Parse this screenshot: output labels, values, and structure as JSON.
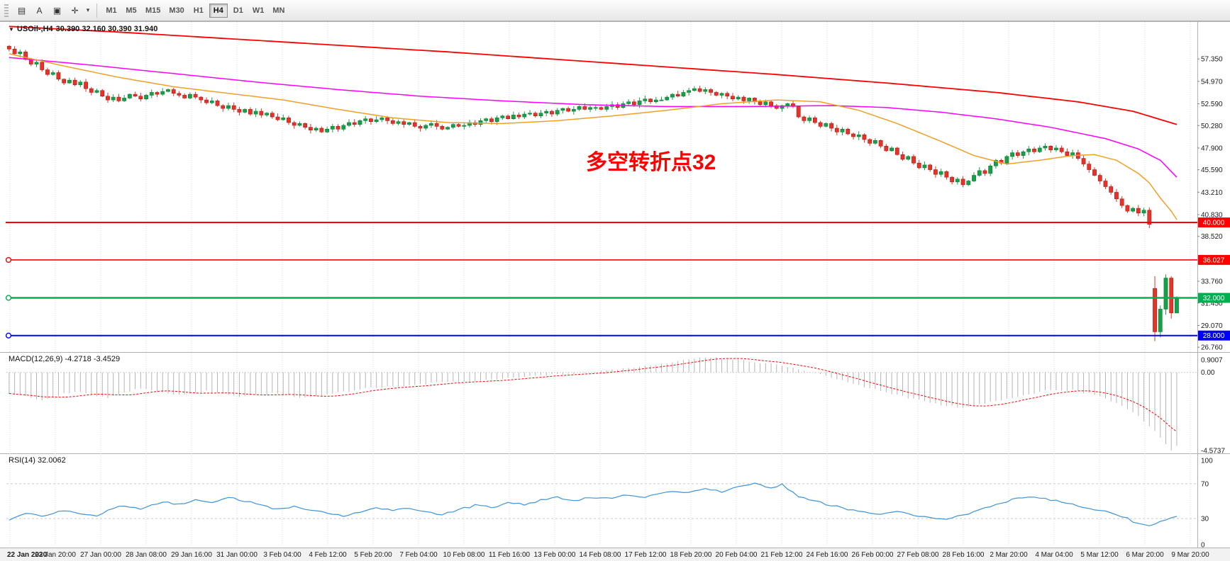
{
  "toolbar": {
    "tools": [
      {
        "id": "charts-grid",
        "glyph": "▤"
      },
      {
        "id": "text-label",
        "glyph": "A"
      },
      {
        "id": "objects",
        "glyph": "▣"
      },
      {
        "id": "crosshair",
        "glyph": "✛"
      }
    ],
    "dropdown_caret": "▾",
    "timeframes": [
      "M1",
      "M5",
      "M15",
      "M30",
      "H1",
      "H4",
      "D1",
      "W1",
      "MN"
    ],
    "active_timeframe": "H4"
  },
  "chart": {
    "symbol": "USOil-,H4",
    "quote": "30.390 32.160 30.390 31.940",
    "collapse_glyph": "▼",
    "annotation": {
      "text": "多空转折点32",
      "color": "#ff0000"
    },
    "price_ticks": [
      {
        "label": "57.350",
        "value": 57.35
      },
      {
        "label": "54.970",
        "value": 54.97
      },
      {
        "label": "52.590",
        "value": 52.59
      },
      {
        "label": "50.280",
        "value": 50.28
      },
      {
        "label": "47.900",
        "value": 47.9
      },
      {
        "label": "45.590",
        "value": 45.59
      },
      {
        "label": "43.210",
        "value": 43.21
      },
      {
        "label": "40.830",
        "value": 40.83
      },
      {
        "label": "38.520",
        "value": 38.52
      },
      {
        "label": "33.760",
        "value": 33.76
      },
      {
        "label": "31.450",
        "value": 31.45
      },
      {
        "label": "29.070",
        "value": 29.07
      },
      {
        "label": "26.760",
        "value": 26.76
      }
    ],
    "time_labels": [
      "22 Jan 2020",
      "23 Jan 20:00",
      "27 Jan 00:00",
      "28 Jan 08:00",
      "29 Jan 16:00",
      "31 Jan 00:00",
      "3 Feb 04:00",
      "4 Feb 12:00",
      "5 Feb 20:00",
      "7 Feb 04:00",
      "10 Feb 08:00",
      "11 Feb 16:00",
      "13 Feb 00:00",
      "14 Feb 08:00",
      "17 Feb 12:00",
      "18 Feb 20:00",
      "20 Feb 04:00",
      "21 Feb 12:00",
      "24 Feb 16:00",
      "26 Feb 00:00",
      "27 Feb 08:00",
      "28 Feb 16:00",
      "2 Mar 20:00",
      "4 Mar 04:00",
      "5 Mar 12:00",
      "6 Mar 20:00",
      "9 Mar 20:00"
    ]
  },
  "indicators": {
    "macd": {
      "label": "MACD(12,26,9) -4.2718 -3.4529",
      "scale": [
        {
          "label": "0.9007",
          "value": 0.9007
        },
        {
          "label": "0.00",
          "value": 0
        },
        {
          "label": "-4.5737",
          "value": -4.5737
        }
      ]
    },
    "rsi": {
      "label": "RSI(14) 32.0062",
      "scale": [
        {
          "label": "100",
          "value": 100
        },
        {
          "label": "70",
          "value": 70
        },
        {
          "label": "30",
          "value": 30
        },
        {
          "label": "0",
          "value": 0
        }
      ]
    }
  },
  "chart_data": {
    "type": "candlestick",
    "title": "USOil-,H4",
    "timeframe": "H4",
    "ylim": [
      26.4,
      61.2
    ],
    "up_color": "#18a048",
    "down_color": "#e63228",
    "first_open": 58.7,
    "closes": [
      58.4,
      57.9,
      58.1,
      57.3,
      56.8,
      57.0,
      56.2,
      55.7,
      55.9,
      55.2,
      54.8,
      55.1,
      54.6,
      54.9,
      54.2,
      53.8,
      54.0,
      53.4,
      53.0,
      53.3,
      52.9,
      53.2,
      53.6,
      53.4,
      53.1,
      53.5,
      53.8,
      53.6,
      53.9,
      54.1,
      53.7,
      53.5,
      53.2,
      53.6,
      53.3,
      53.0,
      52.7,
      52.9,
      52.4,
      52.1,
      52.4,
      52.0,
      51.7,
      52.0,
      51.5,
      51.8,
      51.4,
      51.6,
      51.2,
      50.9,
      51.1,
      50.6,
      50.3,
      50.5,
      50.1,
      49.8,
      50.0,
      49.6,
      49.9,
      50.2,
      49.9,
      50.3,
      50.6,
      50.4,
      50.8,
      51.0,
      50.7,
      50.9,
      51.1,
      50.8,
      50.5,
      50.7,
      50.4,
      50.6,
      50.2,
      50.0,
      50.3,
      50.5,
      50.2,
      49.9,
      50.1,
      50.4,
      50.2,
      50.3,
      50.6,
      50.4,
      50.8,
      51.0,
      50.7,
      51.1,
      51.3,
      51.0,
      51.4,
      51.2,
      51.5,
      51.6,
      51.3,
      51.6,
      51.8,
      51.5,
      51.9,
      52.1,
      51.8,
      52.0,
      52.3,
      52.0,
      52.2,
      52.2,
      52.0,
      52.3,
      52.5,
      52.2,
      52.6,
      52.8,
      52.5,
      52.9,
      53.1,
      52.8,
      53.0,
      53.0,
      53.3,
      53.6,
      53.4,
      53.8,
      54.0,
      54.2,
      53.9,
      54.1,
      53.8,
      53.5,
      53.7,
      53.4,
      53.1,
      53.3,
      52.9,
      53.2,
      52.8,
      52.5,
      52.8,
      52.4,
      52.1,
      52.4,
      52.6,
      52.3,
      51.2,
      50.8,
      51.1,
      50.6,
      50.2,
      50.5,
      50.0,
      49.6,
      49.9,
      49.4,
      49.1,
      49.3,
      48.8,
      48.4,
      48.7,
      48.1,
      47.6,
      47.9,
      47.2,
      46.7,
      47.0,
      46.3,
      45.8,
      46.1,
      45.6,
      45.1,
      45.4,
      44.8,
      44.3,
      44.6,
      44.0,
      44.4,
      45.0,
      45.5,
      45.2,
      46.0,
      46.6,
      46.3,
      47.0,
      47.4,
      47.1,
      47.5,
      47.8,
      47.5,
      47.9,
      48.1,
      47.7,
      47.9,
      47.5,
      47.1,
      47.4,
      46.8,
      46.2,
      45.6,
      45.0,
      44.4,
      43.8,
      43.2,
      42.5,
      41.8,
      41.2,
      41.5,
      41.0,
      41.3
    ],
    "final_bars": [
      [
        41.3,
        41.6,
        39.4,
        39.8
      ],
      [
        33.0,
        34.3,
        27.4,
        28.4
      ],
      [
        28.4,
        31.2,
        27.8,
        30.8
      ],
      [
        30.8,
        34.5,
        30.2,
        34.1
      ],
      [
        34.1,
        34.3,
        29.8,
        30.4
      ],
      [
        30.39,
        32.16,
        30.39,
        31.94
      ]
    ],
    "moving_averages": [
      {
        "name": "ma-slow",
        "color": "#ff0000",
        "width": 1.8,
        "anchors": [
          [
            0,
            60.8
          ],
          [
            20,
            60.2
          ],
          [
            40,
            59.5
          ],
          [
            60,
            58.8
          ],
          [
            80,
            58.1
          ],
          [
            100,
            57.3
          ],
          [
            120,
            56.5
          ],
          [
            140,
            55.7
          ],
          [
            160,
            54.8
          ],
          [
            180,
            53.8
          ],
          [
            195,
            52.8
          ],
          [
            205,
            51.8
          ],
          [
            213,
            50.4
          ]
        ]
      },
      {
        "name": "ma-mid",
        "color": "#ff00ff",
        "width": 1.5,
        "anchors": [
          [
            0,
            57.5
          ],
          [
            15,
            56.7
          ],
          [
            30,
            55.8
          ],
          [
            45,
            54.9
          ],
          [
            60,
            54.1
          ],
          [
            75,
            53.4
          ],
          [
            90,
            52.9
          ],
          [
            105,
            52.5
          ],
          [
            120,
            52.3
          ],
          [
            135,
            52.3
          ],
          [
            150,
            52.4
          ],
          [
            160,
            52.2
          ],
          [
            170,
            51.7
          ],
          [
            180,
            51.0
          ],
          [
            190,
            50.1
          ],
          [
            200,
            48.9
          ],
          [
            206,
            47.8
          ],
          [
            210,
            46.6
          ],
          [
            213,
            44.8
          ]
        ]
      },
      {
        "name": "ma-fast",
        "color": "#f0a028",
        "width": 1.5,
        "anchors": [
          [
            0,
            57.9
          ],
          [
            10,
            56.6
          ],
          [
            20,
            55.4
          ],
          [
            30,
            54.4
          ],
          [
            40,
            53.7
          ],
          [
            50,
            53.0
          ],
          [
            60,
            52.0
          ],
          [
            70,
            51.1
          ],
          [
            80,
            50.6
          ],
          [
            90,
            50.5
          ],
          [
            100,
            50.8
          ],
          [
            110,
            51.3
          ],
          [
            120,
            51.9
          ],
          [
            130,
            52.6
          ],
          [
            140,
            53.0
          ],
          [
            148,
            52.8
          ],
          [
            155,
            51.9
          ],
          [
            162,
            50.5
          ],
          [
            170,
            48.6
          ],
          [
            176,
            47.1
          ],
          [
            182,
            46.2
          ],
          [
            188,
            46.6
          ],
          [
            194,
            47.1
          ],
          [
            198,
            47.2
          ],
          [
            202,
            46.6
          ],
          [
            206,
            45.2
          ],
          [
            208,
            44.2
          ],
          [
            210,
            42.6
          ],
          [
            212,
            41.2
          ],
          [
            213,
            40.3
          ]
        ]
      }
    ],
    "hlines": [
      {
        "value": 40.0,
        "label": "40.000",
        "color": "#ff0000",
        "width": 2.0,
        "left_marker": false
      },
      {
        "value": 36.027,
        "label": "36.027",
        "color": "#ff0000",
        "width": 1.6,
        "left_marker": true
      },
      {
        "value": 32.0,
        "label": "32.000",
        "color": "#00b050",
        "width": 2.6,
        "left_marker": true
      },
      {
        "value": 28.0,
        "label": "28.000",
        "color": "#0000ff",
        "width": 2.0,
        "left_marker": true
      }
    ],
    "macd": {
      "range": [
        -4.5737,
        0.9007
      ],
      "bar_color": "#b5b5b5",
      "signal_color": "#ff0000",
      "anchors": [
        [
          0,
          -1.2
        ],
        [
          6,
          -1.6
        ],
        [
          12,
          -1.1
        ],
        [
          18,
          -1.5
        ],
        [
          24,
          -0.9
        ],
        [
          30,
          -1.3
        ],
        [
          36,
          -1.1
        ],
        [
          42,
          -1.4
        ],
        [
          48,
          -1.2
        ],
        [
          54,
          -1.5
        ],
        [
          60,
          -1.2
        ],
        [
          66,
          -0.9
        ],
        [
          72,
          -0.8
        ],
        [
          78,
          -0.6
        ],
        [
          84,
          -0.5
        ],
        [
          90,
          -0.35
        ],
        [
          96,
          -0.2
        ],
        [
          102,
          -0.1
        ],
        [
          108,
          0.1
        ],
        [
          114,
          0.3
        ],
        [
          120,
          0.55
        ],
        [
          127,
          0.9
        ],
        [
          134,
          0.7
        ],
        [
          140,
          0.45
        ],
        [
          146,
          0.05
        ],
        [
          152,
          -0.5
        ],
        [
          158,
          -1.0
        ],
        [
          164,
          -1.5
        ],
        [
          170,
          -1.9
        ],
        [
          174,
          -2.1
        ],
        [
          180,
          -1.7
        ],
        [
          186,
          -1.3
        ],
        [
          190,
          -1.0
        ],
        [
          194,
          -1.05
        ],
        [
          198,
          -1.3
        ],
        [
          202,
          -1.8
        ],
        [
          205,
          -2.3
        ],
        [
          208,
          -3.1
        ],
        [
          210,
          -3.8
        ],
        [
          212,
          -4.57
        ],
        [
          213,
          -4.27
        ]
      ]
    },
    "rsi": {
      "color": "#3e93d9",
      "levels": [
        70,
        30
      ],
      "range": [
        0,
        100
      ],
      "anchors": [
        [
          0,
          29
        ],
        [
          3,
          36
        ],
        [
          6,
          33
        ],
        [
          10,
          40
        ],
        [
          13,
          36
        ],
        [
          16,
          33
        ],
        [
          20,
          44
        ],
        [
          24,
          41
        ],
        [
          28,
          50
        ],
        [
          31,
          46
        ],
        [
          34,
          52
        ],
        [
          37,
          48
        ],
        [
          40,
          54
        ],
        [
          43,
          50
        ],
        [
          46,
          45
        ],
        [
          49,
          41
        ],
        [
          52,
          44
        ],
        [
          55,
          39
        ],
        [
          58,
          36
        ],
        [
          61,
          33
        ],
        [
          64,
          37
        ],
        [
          67,
          42
        ],
        [
          70,
          39
        ],
        [
          73,
          42
        ],
        [
          76,
          38
        ],
        [
          79,
          35
        ],
        [
          82,
          40
        ],
        [
          85,
          45
        ],
        [
          88,
          43
        ],
        [
          91,
          48
        ],
        [
          94,
          46
        ],
        [
          97,
          51
        ],
        [
          100,
          54
        ],
        [
          103,
          50
        ],
        [
          106,
          55
        ],
        [
          109,
          53
        ],
        [
          112,
          57
        ],
        [
          115,
          54
        ],
        [
          118,
          58
        ],
        [
          121,
          62
        ],
        [
          124,
          59
        ],
        [
          127,
          64
        ],
        [
          130,
          61
        ],
        [
          133,
          66
        ],
        [
          136,
          70
        ],
        [
          139,
          66
        ],
        [
          141,
          69
        ],
        [
          144,
          56
        ],
        [
          147,
          50
        ],
        [
          150,
          45
        ],
        [
          153,
          41
        ],
        [
          156,
          37
        ],
        [
          159,
          34
        ],
        [
          162,
          38
        ],
        [
          165,
          34
        ],
        [
          168,
          31
        ],
        [
          171,
          29
        ],
        [
          174,
          34
        ],
        [
          177,
          40
        ],
        [
          180,
          46
        ],
        [
          183,
          52
        ],
        [
          186,
          55
        ],
        [
          189,
          53
        ],
        [
          192,
          49
        ],
        [
          195,
          45
        ],
        [
          198,
          41
        ],
        [
          201,
          36
        ],
        [
          204,
          30
        ],
        [
          206,
          24
        ],
        [
          208,
          21
        ],
        [
          210,
          27
        ],
        [
          212,
          31
        ],
        [
          213,
          32
        ]
      ]
    }
  }
}
